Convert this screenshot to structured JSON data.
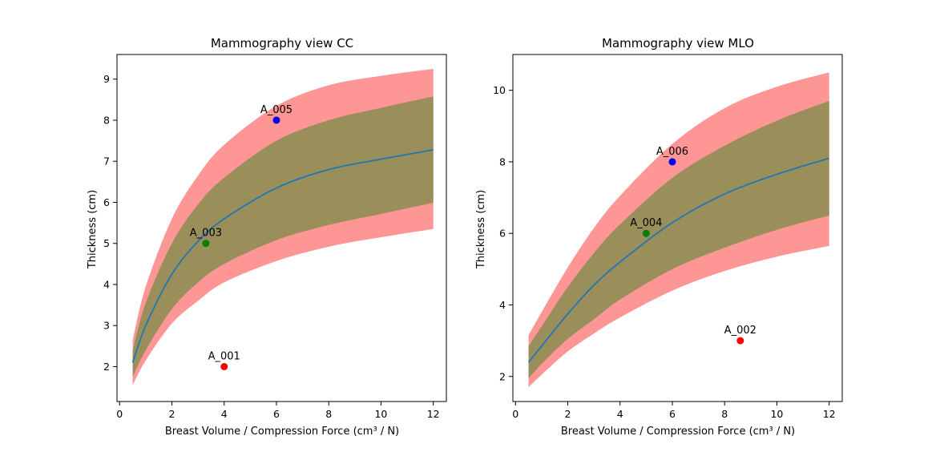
{
  "colors": {
    "outer_band": "#ff9696",
    "inner_band": "#9a8e5a",
    "fit_line": "#1f77b4",
    "red": "#ff0000",
    "green": "#008000",
    "blue": "#0000ff"
  },
  "chart_data": [
    {
      "type": "line",
      "title": "Mammography view CC",
      "xlabel": "Breast Volume / Compression Force (cm³ / N)",
      "ylabel": "Thickness (cm)",
      "xlim": [
        -0.1,
        12.5
      ],
      "ylim": [
        1.15,
        9.6
      ],
      "xticks": [
        0,
        2,
        4,
        6,
        8,
        10,
        12
      ],
      "yticks": [
        2,
        3,
        4,
        5,
        6,
        7,
        8,
        9
      ],
      "grid": false,
      "x": [
        0.5,
        1,
        2,
        3,
        4,
        6,
        8,
        10,
        12
      ],
      "fit": [
        2.1,
        3.0,
        4.25,
        5.05,
        5.6,
        6.35,
        6.8,
        7.05,
        7.28
      ],
      "inner_band": {
        "low": [
          1.75,
          2.4,
          3.4,
          4.05,
          4.5,
          5.08,
          5.45,
          5.72,
          5.99
        ],
        "high": [
          2.4,
          3.55,
          5.0,
          5.95,
          6.6,
          7.5,
          8.0,
          8.3,
          8.58
        ]
      },
      "outer_band": {
        "low": [
          1.55,
          2.15,
          3.05,
          3.6,
          4.05,
          4.57,
          4.92,
          5.15,
          5.35
        ],
        "high": [
          2.65,
          3.95,
          5.6,
          6.65,
          7.4,
          8.35,
          8.85,
          9.08,
          9.25
        ]
      },
      "points": [
        {
          "label": "A_001",
          "x": 4.0,
          "y": 2.0,
          "color": "red"
        },
        {
          "label": "A_003",
          "x": 3.3,
          "y": 5.0,
          "color": "green"
        },
        {
          "label": "A_005",
          "x": 6.0,
          "y": 8.0,
          "color": "blue"
        }
      ]
    },
    {
      "type": "line",
      "title": "Mammography view MLO",
      "xlabel": "Breast Volume / Compression Force (cm³ / N)",
      "ylabel": "Thickness (cm)",
      "xlim": [
        -0.1,
        12.5
      ],
      "ylim": [
        1.3,
        11.0
      ],
      "xticks": [
        0,
        2,
        4,
        6,
        8,
        10,
        12
      ],
      "yticks": [
        2,
        4,
        6,
        8,
        10
      ],
      "grid": false,
      "x": [
        0.5,
        1,
        2,
        3,
        4,
        6,
        8,
        10,
        12
      ],
      "fit": [
        2.4,
        2.85,
        3.75,
        4.55,
        5.2,
        6.3,
        7.1,
        7.65,
        8.1
      ],
      "inner_band": {
        "low": [
          1.95,
          2.35,
          3.05,
          3.6,
          4.15,
          5.0,
          5.6,
          6.1,
          6.5
        ],
        "high": [
          2.85,
          3.4,
          4.5,
          5.45,
          6.25,
          7.55,
          8.45,
          9.15,
          9.7
        ]
      },
      "outer_band": {
        "low": [
          1.7,
          2.05,
          2.7,
          3.2,
          3.65,
          4.4,
          4.95,
          5.35,
          5.65
        ],
        "high": [
          3.15,
          3.8,
          5.05,
          6.15,
          7.05,
          8.5,
          9.5,
          10.1,
          10.5
        ]
      },
      "points": [
        {
          "label": "A_002",
          "x": 8.6,
          "y": 3.0,
          "color": "red"
        },
        {
          "label": "A_004",
          "x": 5.0,
          "y": 6.0,
          "color": "green"
        },
        {
          "label": "A_006",
          "x": 6.0,
          "y": 8.0,
          "color": "blue"
        }
      ]
    }
  ]
}
